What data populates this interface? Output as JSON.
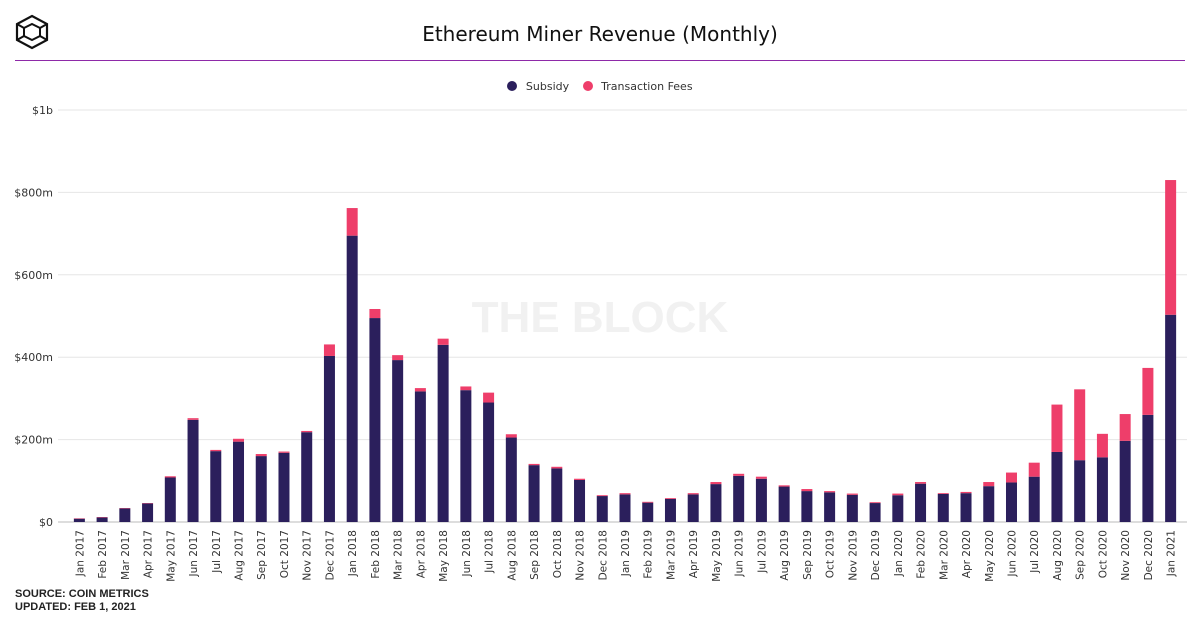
{
  "header": {
    "title": "Ethereum Miner Revenue (Monthly)",
    "logo_icon": "the-block-cube-logo-icon"
  },
  "watermark": "THE BLOCK",
  "source": {
    "line1": "SOURCE: COIN METRICS",
    "line2": "UPDATED: FEB 1, 2021"
  },
  "colors": {
    "subsidy": "#2b1f5c",
    "fees": "#ee3e6a",
    "rule": "#8e2aa8",
    "grid": "#e6e6e6"
  },
  "chart_data": {
    "type": "bar",
    "stacked": true,
    "title": "Ethereum Miner Revenue (Monthly)",
    "categories": [
      "Jan 2017",
      "Feb 2017",
      "Mar 2017",
      "Apr 2017",
      "May 2017",
      "Jun 2017",
      "Jul 2017",
      "Aug 2017",
      "Sep 2017",
      "Oct 2017",
      "Nov 2017",
      "Dec 2017",
      "Jan 2018",
      "Feb 2018",
      "Mar 2018",
      "Apr 2018",
      "May 2018",
      "Jun 2018",
      "Jul 2018",
      "Aug 2018",
      "Sep 2018",
      "Oct 2018",
      "Nov 2018",
      "Dec 2018",
      "Jan 2019",
      "Feb 2019",
      "Mar 2019",
      "Apr 2019",
      "May 2019",
      "Jun 2019",
      "Jul 2019",
      "Aug 2019",
      "Sep 2019",
      "Oct 2019",
      "Nov 2019",
      "Dec 2019",
      "Jan 2020",
      "Feb 2020",
      "Mar 2020",
      "Apr 2020",
      "May 2020",
      "Jun 2020",
      "Jul 2020",
      "Aug 2020",
      "Sep 2020",
      "Oct 2020",
      "Nov 2020",
      "Dec 2020",
      "Jan 2021"
    ],
    "series": [
      {
        "name": "Subsidy",
        "values": [
          8,
          11,
          33,
          45,
          108,
          248,
          172,
          195,
          160,
          168,
          218,
          403,
          695,
          495,
          393,
          317,
          430,
          320,
          290,
          205,
          138,
          130,
          102,
          63,
          67,
          47,
          56,
          67,
          92,
          112,
          105,
          86,
          75,
          72,
          66,
          46,
          65,
          93,
          68,
          70,
          87,
          96,
          110,
          170,
          150,
          157,
          197,
          260,
          503
        ]
      },
      {
        "name": "Transaction Fees",
        "values": [
          1,
          1,
          1,
          1,
          3,
          4,
          3,
          7,
          5,
          3,
          3,
          28,
          67,
          22,
          12,
          8,
          15,
          9,
          24,
          8,
          3,
          4,
          3,
          2,
          3,
          2,
          2,
          3,
          5,
          5,
          5,
          3,
          5,
          3,
          3,
          2,
          4,
          4,
          2,
          3,
          10,
          24,
          34,
          115,
          172,
          57,
          65,
          114,
          327
        ]
      }
    ],
    "ylabel": "",
    "xlabel": "",
    "ylim": [
      0,
      1000
    ],
    "yticks": [
      0,
      200,
      400,
      600,
      800,
      1000
    ],
    "ytick_labels": [
      "$0",
      "$200m",
      "$400m",
      "$600m",
      "$800m",
      "$1b"
    ],
    "grid": true,
    "legend_position": "top-center"
  }
}
